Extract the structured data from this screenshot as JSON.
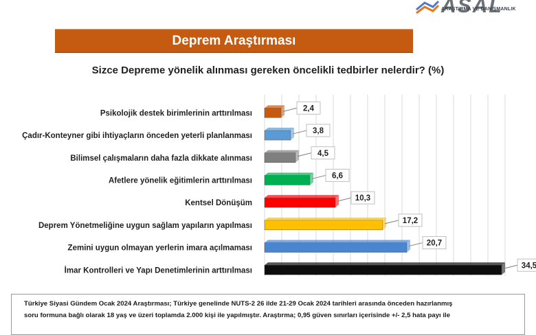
{
  "logo": {
    "name": "ASAL",
    "subtitle": "ARAŞTIRMA VE DANIŞMANLIK"
  },
  "banner": {
    "title": "Deprem Araştırması"
  },
  "question": "Sizce Depreme yönelik alınması gereken öncelikli tedbirler nelerdir? (%)",
  "chart_data": {
    "type": "bar",
    "orientation": "horizontal",
    "title": "Sizce Depreme yönelik alınması gereken öncelikli tedbirler nelerdir? (%)",
    "categories": [
      "Psikolojik destek birimlerinin arttırılması",
      "Çadır-Konteyner gibi ihtiyaçların önceden yeterli planlanması",
      "Bilimsel çalışmaların daha fazla dikkate alınması",
      "Afetlere yönelik eğitimlerin arttırılması",
      "Kentsel Dönüşüm",
      "Deprem Yönetmeliğine uygun sağlam yapıların yapılması",
      "Zemini uygun olmayan yerlerin imara açılmaması",
      "İmar Kontrolleri ve Yapı Denetimlerinin arttırılması"
    ],
    "values": [
      2.4,
      3.8,
      4.5,
      6.6,
      10.3,
      17.2,
      20.7,
      34.5
    ],
    "value_labels": [
      "2,4",
      "3,8",
      "4,5",
      "6,6",
      "10,3",
      "17,2",
      "20,7",
      "34,5"
    ],
    "colors": [
      "#c55a11",
      "#5b9bd5",
      "#7f7f7f",
      "#00b050",
      "#ff0000",
      "#ffc000",
      "#4a86d0",
      "#0d0d0d"
    ],
    "xlim": [
      0,
      35
    ],
    "grid": true,
    "xlabel": "",
    "ylabel": ""
  },
  "footnote": {
    "line1": "Türkiye Siyasi Gündem Ocak 2024 Araştırması; Türkiye genelinde NUTS-2 26 ilde 21-29 Ocak 2024 tarihleri arasında önceden hazırlanmış",
    "line2": "soru formuna bağlı olarak 18 yaş ve üzeri toplamda 2.000 kişi ile yapılmıştır. Araştırma; 0,95 güven sınırları içerisinde +/- 2,5 hata payı ile"
  }
}
